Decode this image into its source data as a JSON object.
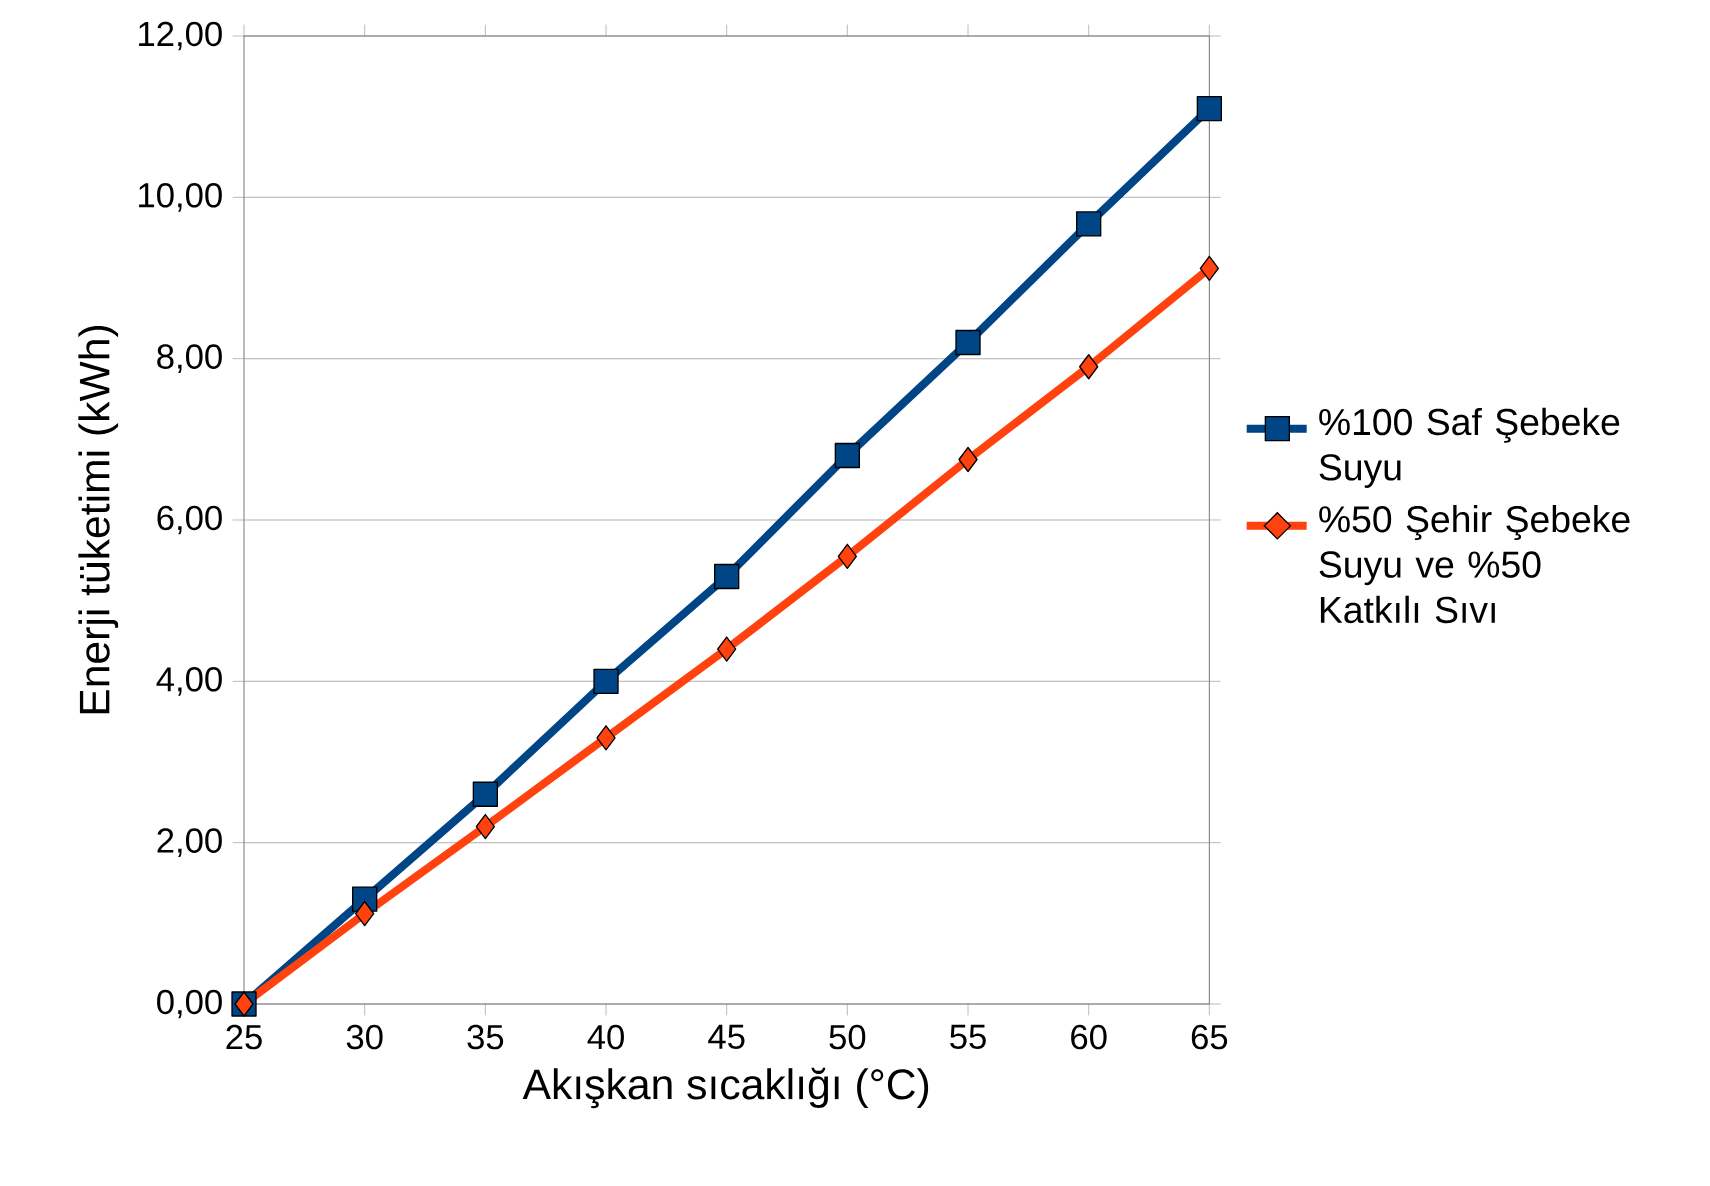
{
  "chart_data": {
    "type": "line",
    "xlabel": "Akışkan sıcaklığı (°C)",
    "ylabel": "Enerji tüketimi (kWh)",
    "x": [
      25,
      30,
      35,
      40,
      45,
      50,
      55,
      60,
      65
    ],
    "xlim": [
      25,
      65
    ],
    "xticks": [
      25,
      30,
      35,
      40,
      45,
      50,
      55,
      60,
      65
    ],
    "ylim": [
      0,
      12
    ],
    "yticks": [
      {
        "value": 0,
        "label": "0,00"
      },
      {
        "value": 2,
        "label": "2,00"
      },
      {
        "value": 4,
        "label": "4,00"
      },
      {
        "value": 6,
        "label": "6,00"
      },
      {
        "value": 8,
        "label": "8,00"
      },
      {
        "value": 10,
        "label": "10,00"
      },
      {
        "value": 12,
        "label": "12,00"
      }
    ],
    "grid": "y",
    "legend": "right",
    "line_style": "solid",
    "series": [
      {
        "name": "%100 Saf Şebeke Suyu",
        "color": "#004586",
        "marker": "square",
        "values": [
          0,
          1.3,
          2.6,
          4.0,
          5.3,
          6.8,
          8.2,
          9.67,
          11.1
        ]
      },
      {
        "name": "%50 Şehir Şebeke Suyu ve %50 Katkılı Sıvı",
        "color": "#ff420e",
        "marker": "diamond",
        "values": [
          0,
          1.12,
          2.2,
          3.3,
          4.4,
          5.55,
          6.75,
          7.9,
          9.12
        ]
      }
    ]
  }
}
